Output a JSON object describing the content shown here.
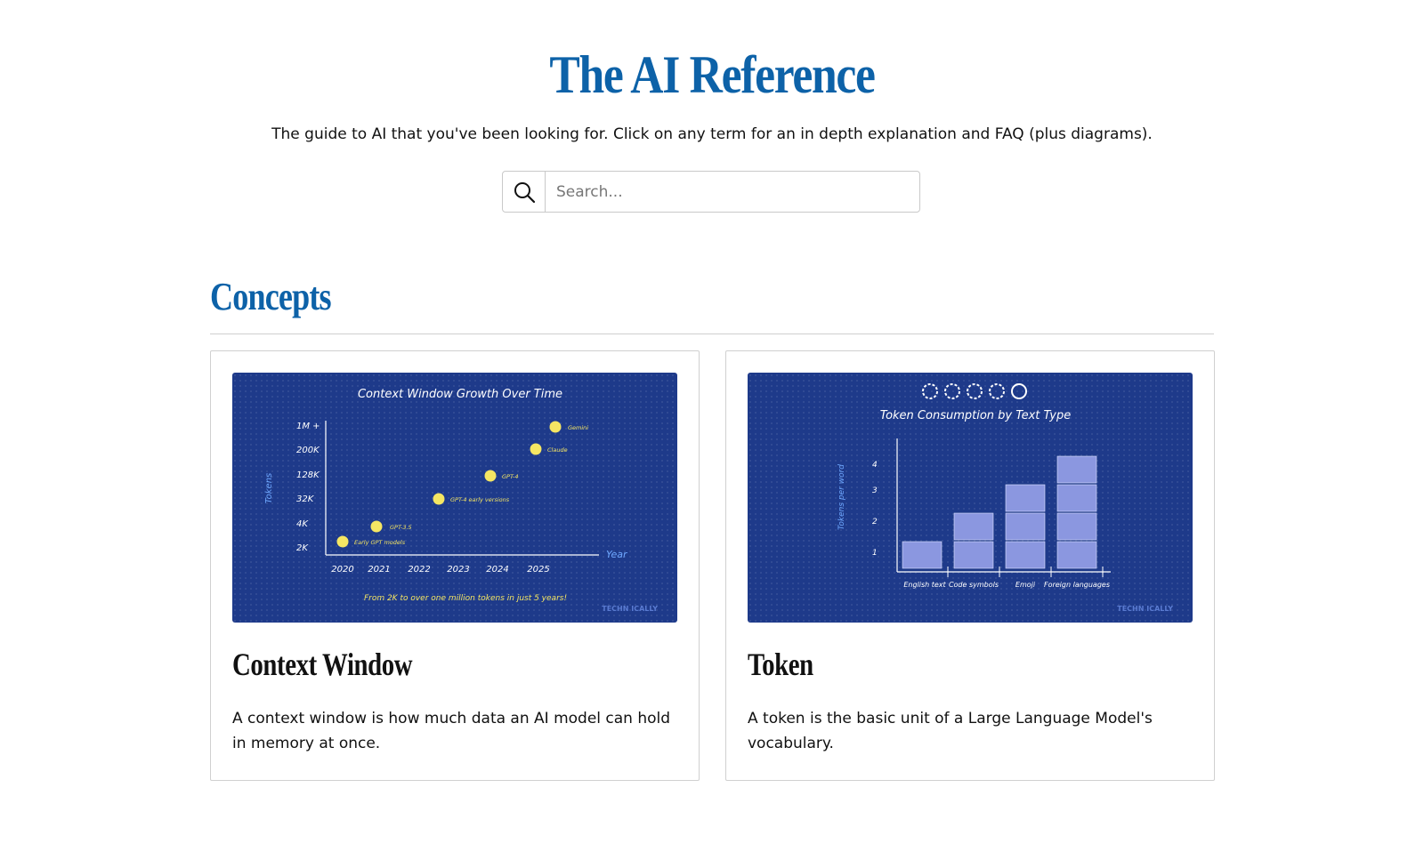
{
  "header": {
    "title": "The AI Reference",
    "tagline": "The guide to AI that you've been looking for. Click on any term for an in depth explanation and FAQ (plus diagrams)."
  },
  "search": {
    "placeholder": "Search...",
    "value": "",
    "icon": "search-icon"
  },
  "section": {
    "title": "Concepts"
  },
  "cards": [
    {
      "title": "Context Window",
      "description": "A context window is how much data an AI model can hold in memory at once.",
      "figure": {
        "title": "Context Window Growth Over Time",
        "ylabel": "Tokens",
        "xlabel": "Year",
        "caption": "From 2K to over one million tokens in just 5 years!",
        "y_ticks": [
          "2K",
          "4K",
          "32K",
          "128K",
          "200K",
          "1M +"
        ],
        "x_ticks": [
          "2020",
          "2021",
          "2022",
          "2023",
          "2024",
          "2025"
        ],
        "points": [
          {
            "label": "Early GPT models",
            "x": 2020,
            "y": "2K"
          },
          {
            "label": "GPT-3.5",
            "x": 2021,
            "y": "4K"
          },
          {
            "label": "GPT-4 early versions",
            "x": 2022.5,
            "y": "32K"
          },
          {
            "label": "GPT-4",
            "x": 2023.5,
            "y": "128K"
          },
          {
            "label": "Claude",
            "x": 2024.5,
            "y": "200K"
          },
          {
            "label": "Gemini",
            "x": 2025,
            "y": "1M +"
          }
        ],
        "watermark": "TECHN ICALLY"
      }
    },
    {
      "title": "Token",
      "description": "A token is the basic unit of a Large Language Model's vocabulary.",
      "figure": {
        "title": "Token Consumption by Text Type",
        "ylabel": "Tokens per word",
        "y_ticks": [
          "1",
          "2",
          "3",
          "4"
        ],
        "categories": [
          "English text",
          "Code symbols",
          "Emoji",
          "Foreign languages"
        ],
        "values": [
          1,
          2,
          3,
          4
        ],
        "watermark": "TECHN ICALLY"
      }
    }
  ],
  "colors": {
    "brand": "#0d62a8",
    "figure_bg": "#1e3a8a",
    "point": "#f5e663",
    "bar": "#8b97e0"
  }
}
